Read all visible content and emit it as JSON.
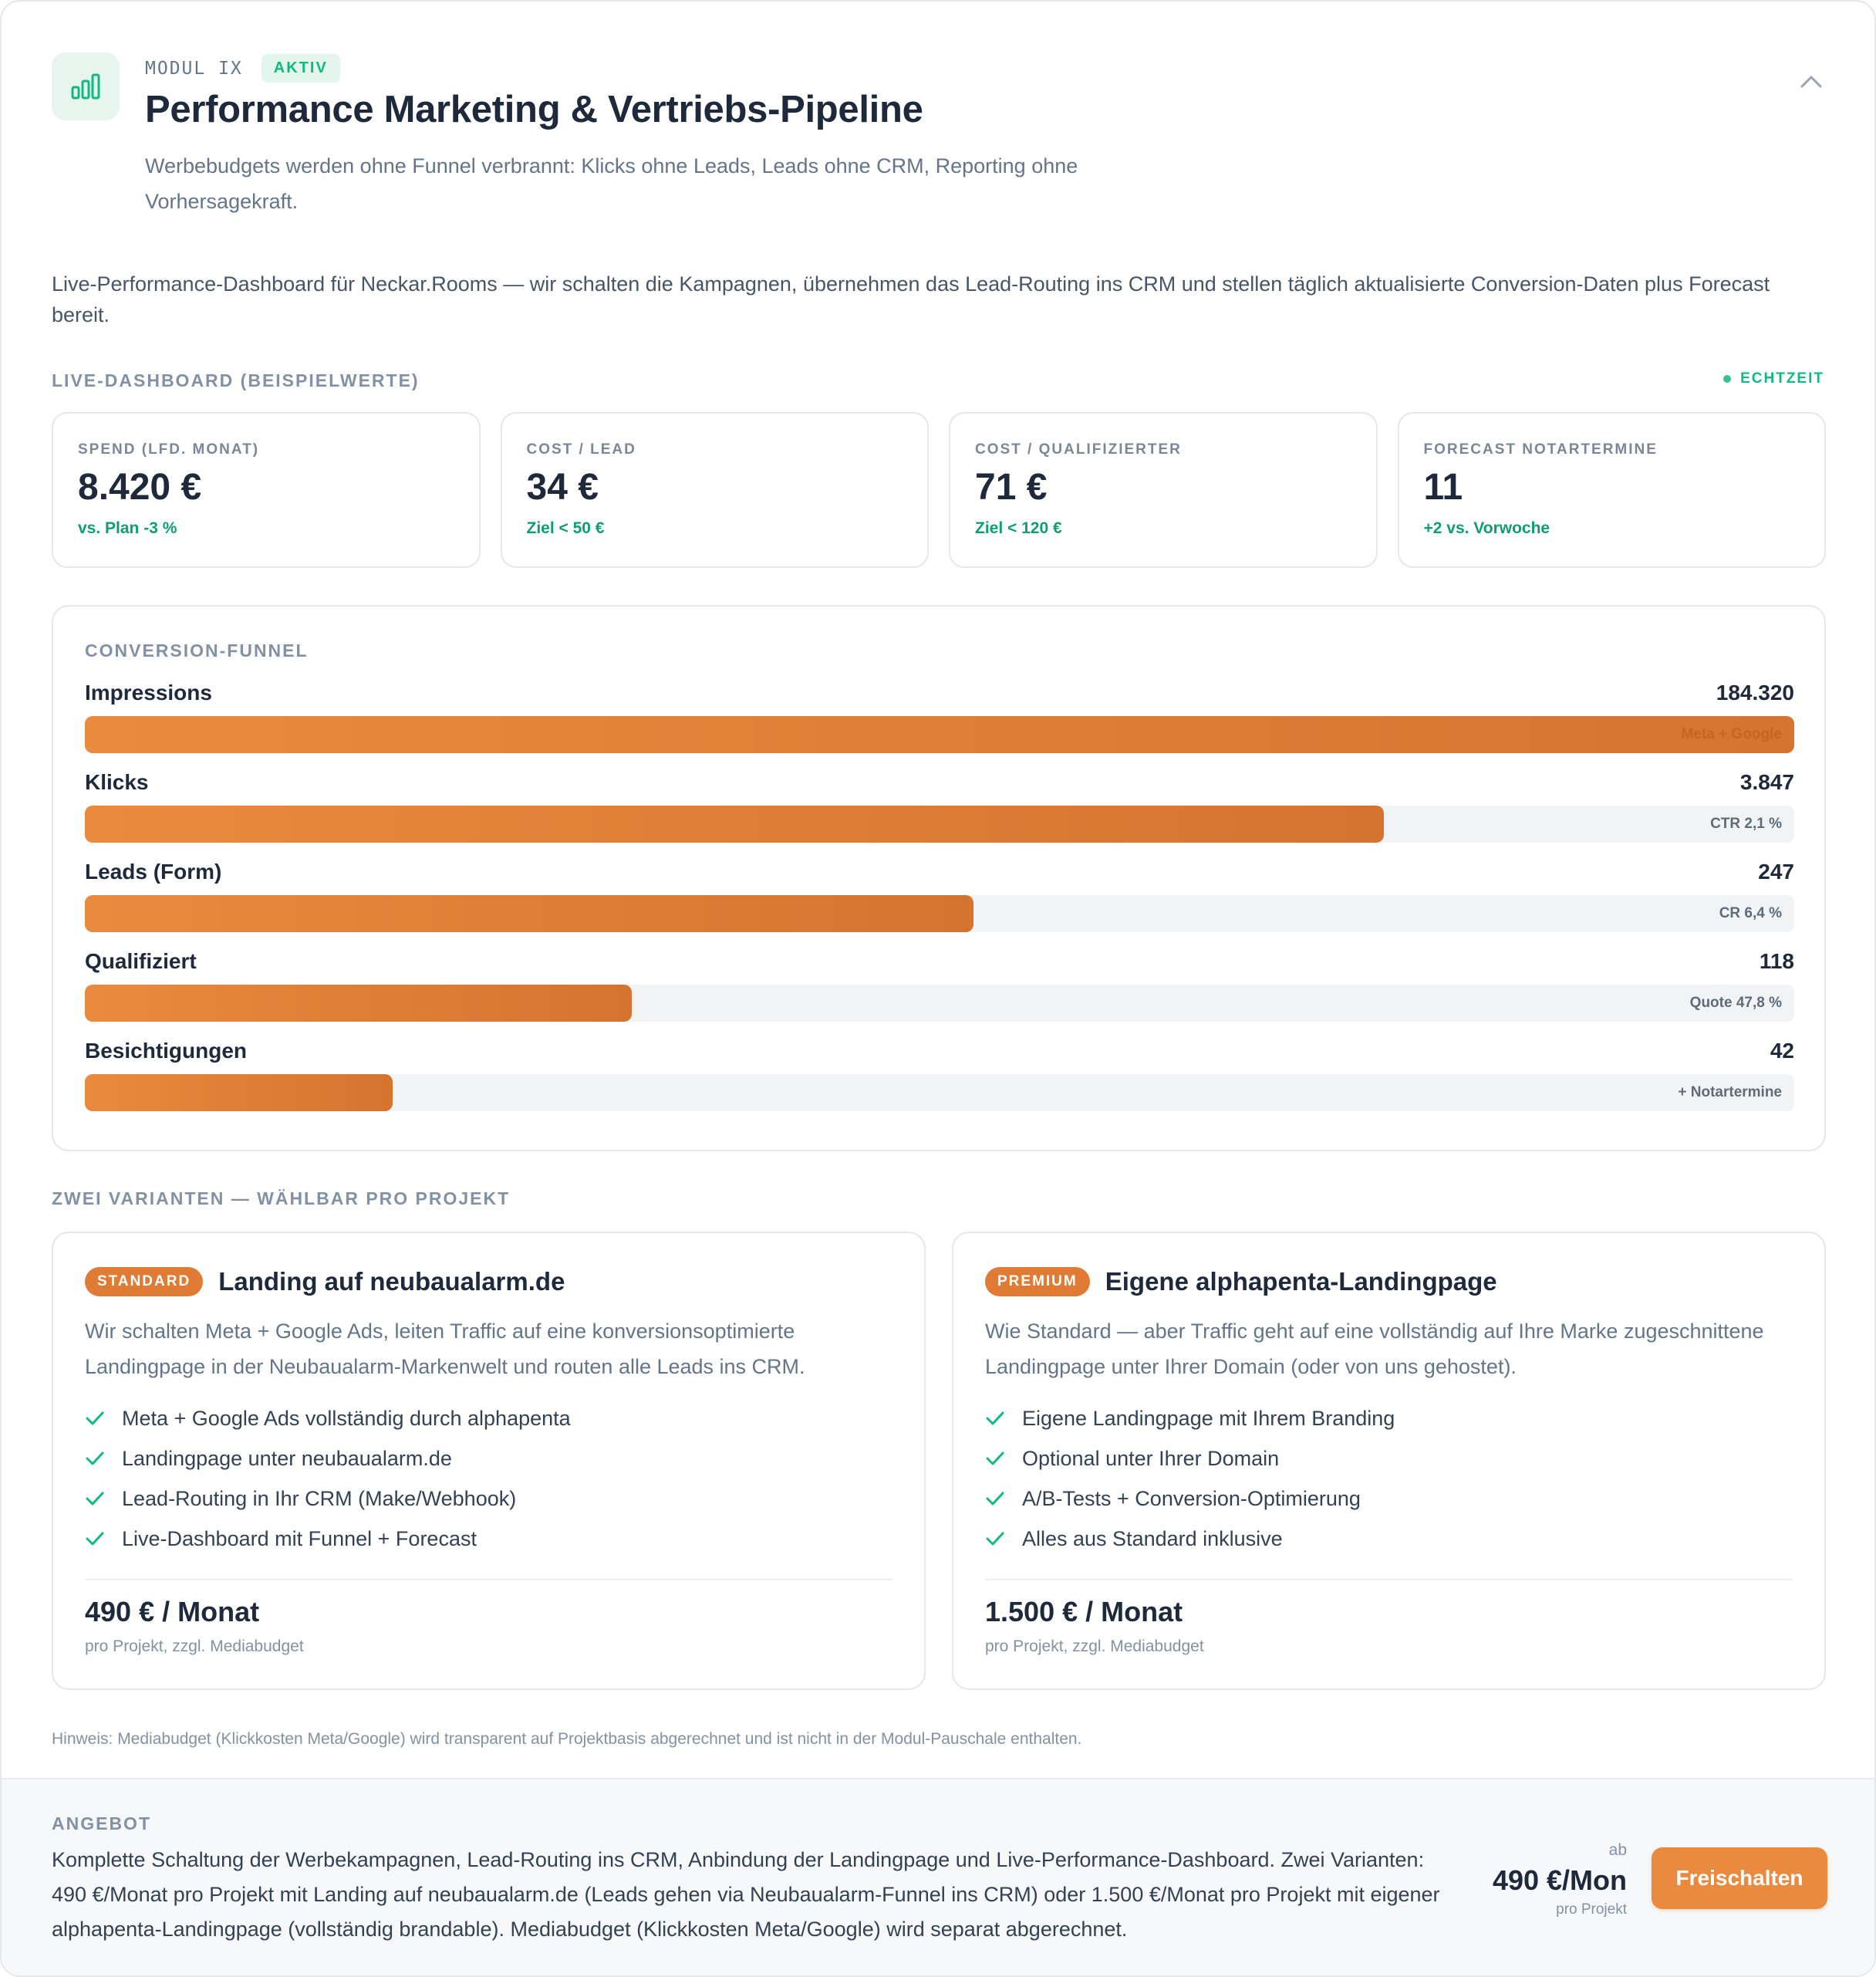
{
  "header": {
    "module_label": "MODUL IX",
    "status_badge": "AKTIV",
    "title": "Performance Marketing & Vertriebs-Pipeline",
    "subtitle": "Werbebudgets werden ohne Funnel verbrannt: Klicks ohne Leads, Leads ohne CRM, Reporting ohne Vorhersagekraft.",
    "icon": "bar-chart-icon",
    "collapse_icon": "chevron-up-icon"
  },
  "intro": "Live-Performance-Dashboard für Neckar.Rooms — wir schalten die Kampagnen, übernehmen das Lead-Routing ins CRM und stellen täglich aktualisierte Conversion-Daten plus Forecast bereit.",
  "dashboard": {
    "label": "LIVE-DASHBOARD (BEISPIELWERTE)",
    "realtime": "ECHTZEIT",
    "kpis": [
      {
        "label": "SPEND (LFD. MONAT)",
        "value": "8.420 €",
        "delta": "vs. Plan -3 %"
      },
      {
        "label": "COST / LEAD",
        "value": "34 €",
        "delta": "Ziel < 50 €"
      },
      {
        "label": "COST / QUALIFIZIERTER",
        "value": "71 €",
        "delta": "Ziel < 120 €"
      },
      {
        "label": "FORECAST NOTARTERMINE",
        "value": "11",
        "delta": "+2 vs. Vorwoche"
      }
    ]
  },
  "funnel": {
    "label": "CONVERSION-FUNNEL",
    "stages": [
      {
        "name": "Impressions",
        "value": "184.320",
        "note": "Meta + Google",
        "fill": 1.0
      },
      {
        "name": "Klicks",
        "value": "3.847",
        "note": "CTR 2,1 %",
        "fill": 0.76
      },
      {
        "name": "Leads (Form)",
        "value": "247",
        "note": "CR 6,4 %",
        "fill": 0.52
      },
      {
        "name": "Qualifiziert",
        "value": "118",
        "note": "Quote 47,8 %",
        "fill": 0.32
      },
      {
        "name": "Besichtigungen",
        "value": "42",
        "note": "+ Notartermine",
        "fill": 0.18
      }
    ]
  },
  "variants": {
    "label": "ZWEI VARIANTEN — WÄHLBAR PRO PROJEKT",
    "items": [
      {
        "tag": "STANDARD",
        "title": "Landing auf neubaualarm.de",
        "description": "Wir schalten Meta + Google Ads, leiten Traffic auf eine konversionsoptimierte Landingpage in der Neubaualarm-Markenwelt und routen alle Leads ins CRM.",
        "features": [
          "Meta + Google Ads vollständig durch alphapenta",
          "Landingpage unter neubaualarm.de",
          "Lead-Routing in Ihr CRM (Make/Webhook)",
          "Live-Dashboard mit Funnel + Forecast"
        ],
        "price": "490 € / Monat",
        "price_note": "pro Projekt, zzgl. Mediabudget"
      },
      {
        "tag": "PREMIUM",
        "title": "Eigene alphapenta-Landingpage",
        "description": "Wie Standard — aber Traffic geht auf eine vollständig auf Ihre Marke zugeschnittene Landingpage unter Ihrer Domain (oder von uns gehostet).",
        "features": [
          "Eigene Landingpage mit Ihrem Branding",
          "Optional unter Ihrer Domain",
          "A/B-Tests + Conversion-Optimierung",
          "Alles aus Standard inklusive"
        ],
        "price": "1.500 € / Monat",
        "price_note": "pro Projekt, zzgl. Mediabudget"
      }
    ]
  },
  "hint": "Hinweis: Mediabudget (Klickkosten Meta/Google) wird transparent auf Projektbasis abgerechnet und ist nicht in der Modul-Pauschale enthalten.",
  "offer": {
    "label": "ANGEBOT",
    "text": "Komplette Schaltung der Werbekampagnen, Lead-Routing ins CRM, Anbindung der Landingpage und Live-Performance-Dashboard. Zwei Varianten: 490 €/Monat pro Projekt mit Landing auf neubaualarm.de (Leads gehen via Neubaualarm-Funnel ins CRM) oder 1.500 €/Monat pro Projekt mit eigener alphapenta-Landingpage (vollständig brandable). Mediabudget (Klickkosten Meta/Google) wird separat abgerechnet.",
    "price_prefix": "ab",
    "price": "490 €/Mon",
    "price_suffix": "pro Projekt",
    "button": "Freischalten"
  },
  "colors": {
    "accent": "#ea8a3f",
    "success": "#10b981",
    "text": "#1e293b",
    "muted": "#64748b"
  }
}
